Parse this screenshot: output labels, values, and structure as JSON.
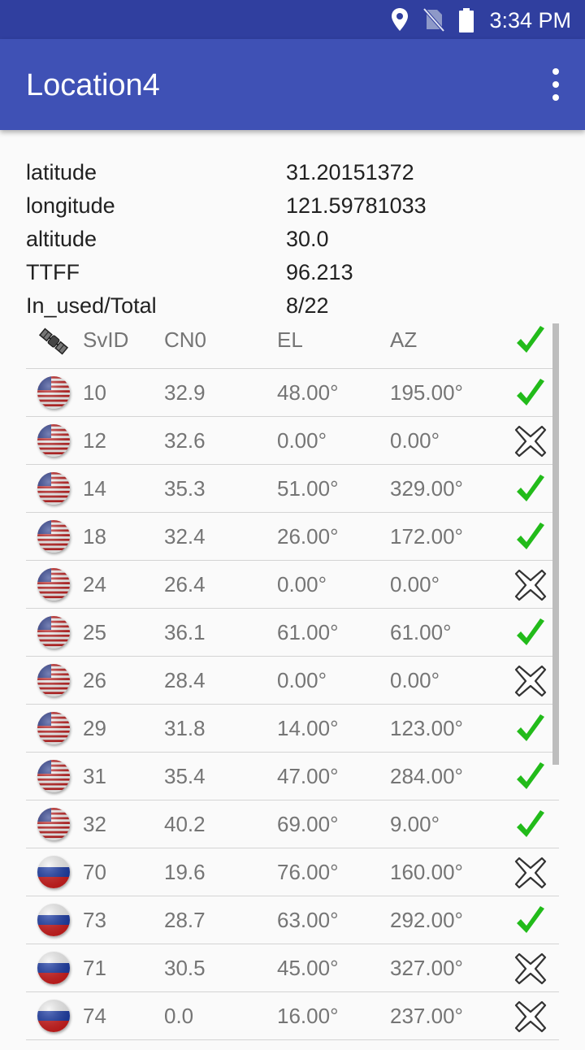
{
  "status_bar": {
    "time": "3:34 PM",
    "icons": [
      "location-pin-icon",
      "no-sim-icon",
      "battery-icon"
    ]
  },
  "app_bar": {
    "title": "Location4",
    "menu_icon": "more-vert-icon"
  },
  "info": [
    {
      "label": "latitude",
      "value": "31.20151372"
    },
    {
      "label": "longitude",
      "value": "121.59781033"
    },
    {
      "label": "altitude",
      "value": "30.0"
    },
    {
      "label": "TTFF",
      "value": "96.213"
    },
    {
      "label": "In_used/Total",
      "value": "8/22"
    }
  ],
  "table": {
    "header": {
      "icon": "satellite-icon",
      "svid": "SvID",
      "cn0": "CN0",
      "el": "EL",
      "az": "AZ",
      "used_icon": "check-icon"
    },
    "rows": [
      {
        "flag": "us-flag-icon",
        "svid": "10",
        "cn0": "32.9",
        "el": "48.00°",
        "az": "195.00°",
        "used": true
      },
      {
        "flag": "us-flag-icon",
        "svid": "12",
        "cn0": "32.6",
        "el": "0.00°",
        "az": "0.00°",
        "used": false
      },
      {
        "flag": "us-flag-icon",
        "svid": "14",
        "cn0": "35.3",
        "el": "51.00°",
        "az": "329.00°",
        "used": true
      },
      {
        "flag": "us-flag-icon",
        "svid": "18",
        "cn0": "32.4",
        "el": "26.00°",
        "az": "172.00°",
        "used": true
      },
      {
        "flag": "us-flag-icon",
        "svid": "24",
        "cn0": "26.4",
        "el": "0.00°",
        "az": "0.00°",
        "used": false
      },
      {
        "flag": "us-flag-icon",
        "svid": "25",
        "cn0": "36.1",
        "el": "61.00°",
        "az": "61.00°",
        "used": true
      },
      {
        "flag": "us-flag-icon",
        "svid": "26",
        "cn0": "28.4",
        "el": "0.00°",
        "az": "0.00°",
        "used": false
      },
      {
        "flag": "us-flag-icon",
        "svid": "29",
        "cn0": "31.8",
        "el": "14.00°",
        "az": "123.00°",
        "used": true
      },
      {
        "flag": "us-flag-icon",
        "svid": "31",
        "cn0": "35.4",
        "el": "47.00°",
        "az": "284.00°",
        "used": true
      },
      {
        "flag": "us-flag-icon",
        "svid": "32",
        "cn0": "40.2",
        "el": "69.00°",
        "az": "9.00°",
        "used": true
      },
      {
        "flag": "ru-flag-icon",
        "svid": "70",
        "cn0": "19.6",
        "el": "76.00°",
        "az": "160.00°",
        "used": false
      },
      {
        "flag": "ru-flag-icon",
        "svid": "73",
        "cn0": "28.7",
        "el": "63.00°",
        "az": "292.00°",
        "used": true
      },
      {
        "flag": "ru-flag-icon",
        "svid": "71",
        "cn0": "30.5",
        "el": "45.00°",
        "az": "327.00°",
        "used": false
      },
      {
        "flag": "ru-flag-icon",
        "svid": "74",
        "cn0": "0.0",
        "el": "16.00°",
        "az": "237.00°",
        "used": false
      }
    ]
  },
  "colors": {
    "status_bar": "#303f9f",
    "app_bar": "#3f51b5",
    "check": "#22bb1a",
    "cross_fill": "#ffffff",
    "cross_stroke": "#333333"
  }
}
